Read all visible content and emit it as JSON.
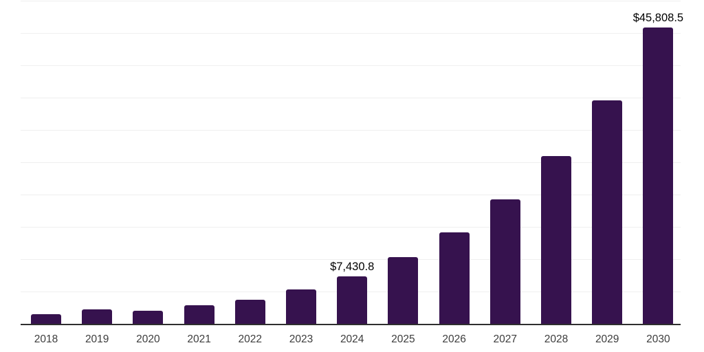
{
  "chart_data": {
    "type": "bar",
    "title": "",
    "xlabel": "",
    "ylabel": "",
    "legend": "none",
    "grid": "horizontal",
    "ylim": [
      0,
      50000
    ],
    "gridline_step": 5000,
    "categories": [
      "2018",
      "2019",
      "2020",
      "2021",
      "2022",
      "2023",
      "2024",
      "2025",
      "2026",
      "2027",
      "2028",
      "2029",
      "2030"
    ],
    "values": [
      1540,
      2270,
      2100,
      2870,
      3760,
      5390,
      7430.8,
      10330,
      14170,
      19260,
      26000,
      34590,
      45808.5
    ],
    "value_labels": [
      {
        "category": "2024",
        "text": "$7,430.8"
      },
      {
        "category": "2030",
        "text": "$45,808.5"
      }
    ],
    "colors": {
      "bar": "#36124E",
      "axis": "#2E2E2E",
      "gridline": "#EFEFEF",
      "year_label": "#3C3C3C",
      "value_label": "#000000",
      "background": "#FFFFFF"
    }
  }
}
